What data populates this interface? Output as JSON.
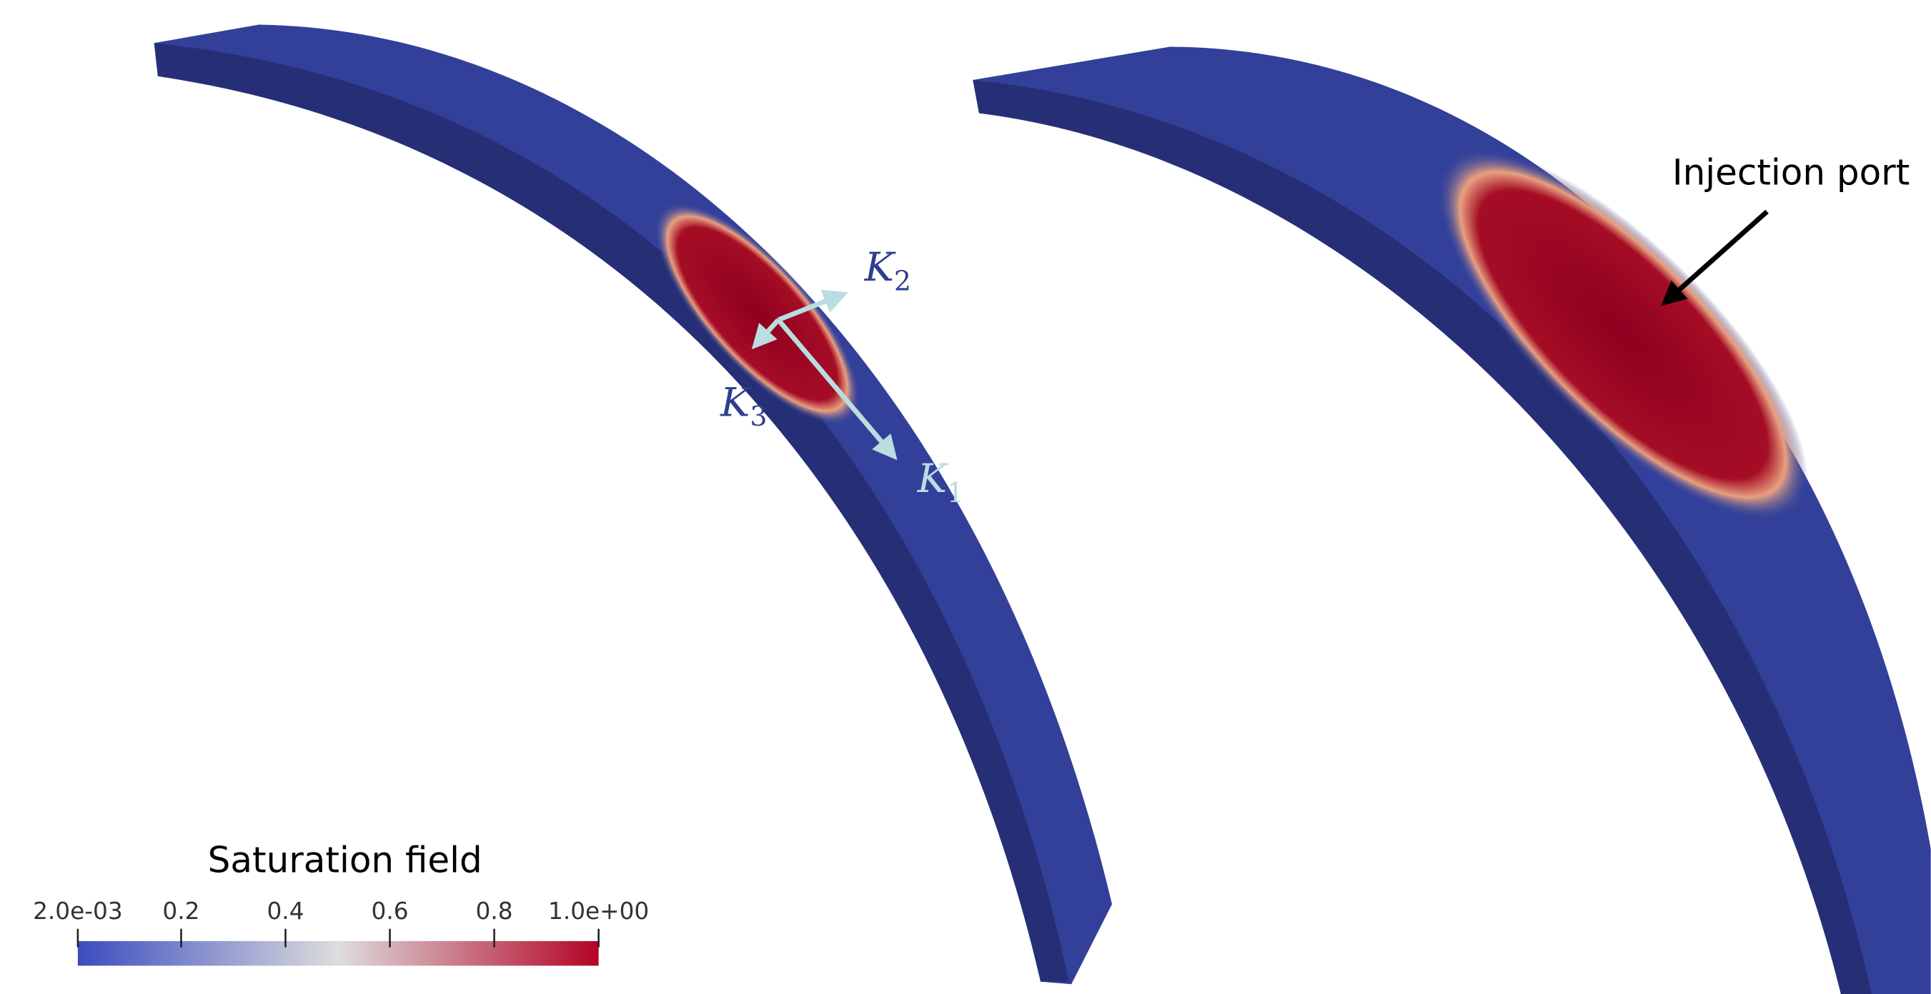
{
  "colorbar": {
    "title": "Saturation field",
    "range": [
      0.002,
      1
    ],
    "ticks": [
      {
        "value": 0.002,
        "label": "2.0e-03"
      },
      0.2,
      0.4,
      0.6,
      0.8,
      {
        "value": 1,
        "label": "1.0e+00"
      }
    ],
    "colors": [
      "#3b4cc0",
      "#dddddd",
      "#b40426"
    ]
  },
  "axes_labels": [
    {
      "symbol": "K",
      "subscript": "1"
    },
    {
      "symbol": "K",
      "subscript": "2"
    },
    {
      "symbol": "K",
      "subscript": "3"
    }
  ],
  "annotation": "Injection port"
}
